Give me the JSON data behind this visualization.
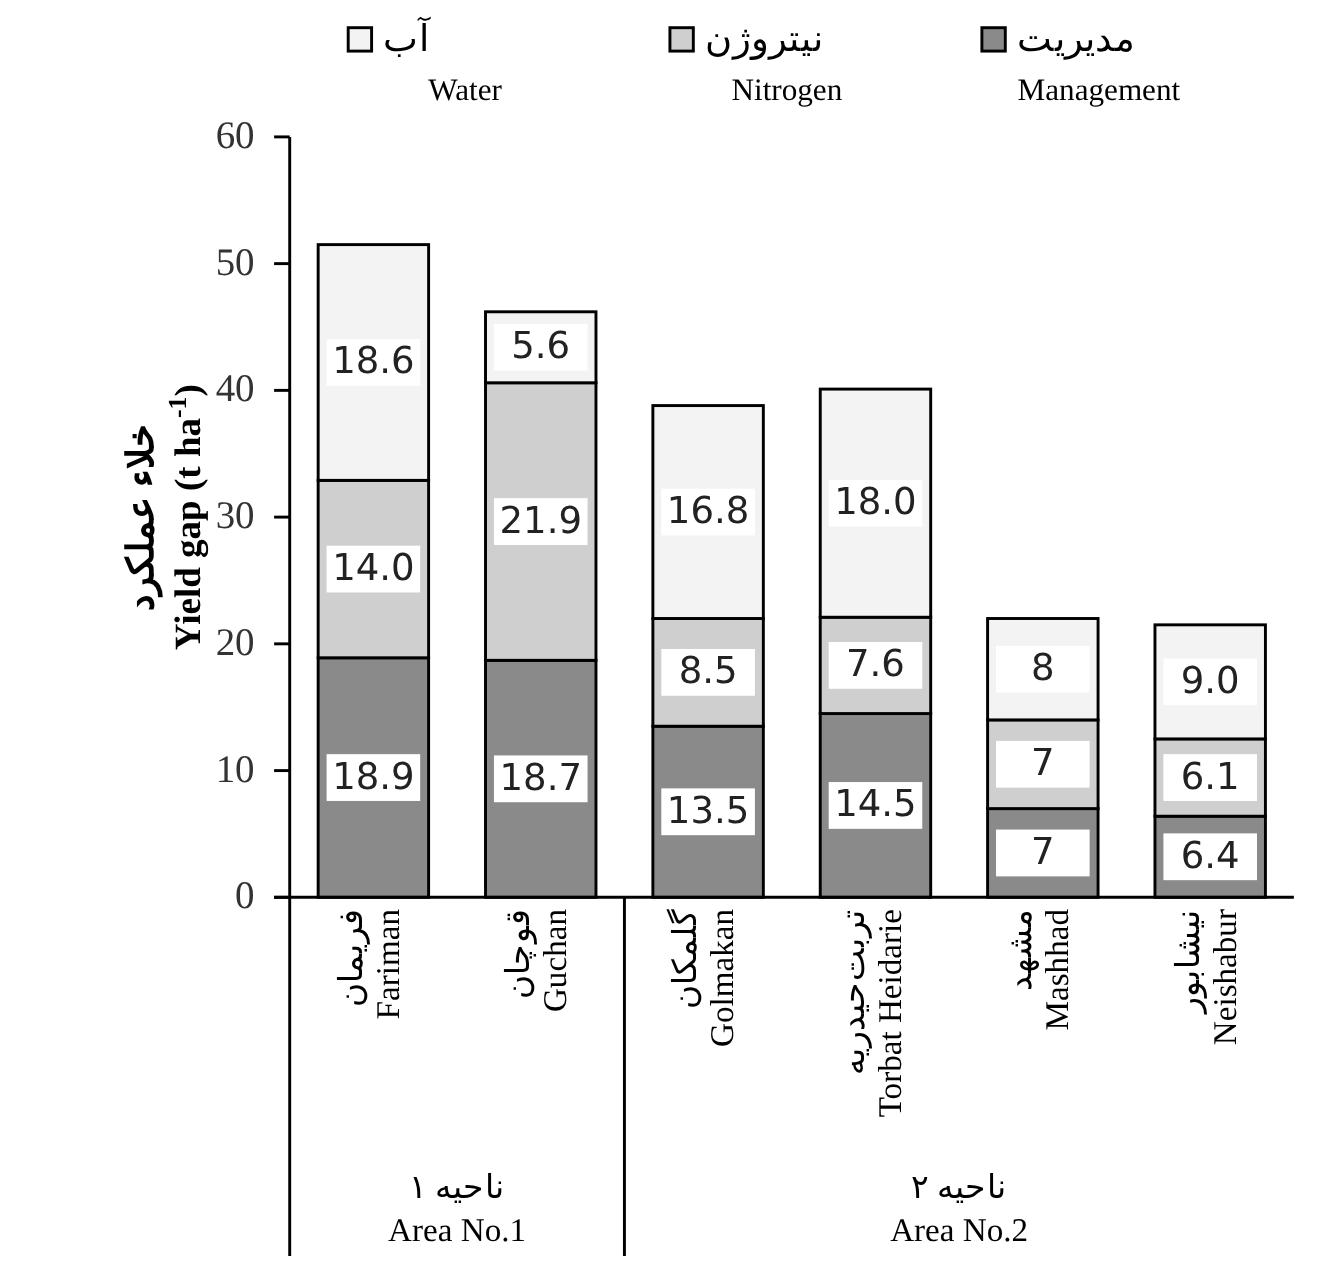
{
  "chart_data": {
    "type": "bar",
    "stacked": true,
    "ylabel": "خلاء عملکرد\nYield gap (t ha$^{-1}$)",
    "categories": [
      "فریمان\nFariman",
      "قوچان\nGuchan",
      "گلمکان\nGolmakan",
      "تربت‌حیدریه\nTorbat Heidarie",
      "مشهد\nMashhad",
      "نیشابور\nNeishabur"
    ],
    "series": [
      {
        "name": "مدیریت\nManagement",
        "color": "#8a8a8a",
        "values": [
          18.9,
          18.7,
          13.5,
          14.5,
          7,
          6.4
        ],
        "value_labels": [
          "18.9",
          "18.7",
          "13.5",
          "14.5",
          "7",
          "6.4"
        ]
      },
      {
        "name": "نیتروژن\nNitrogen",
        "color": "#cfcfcf",
        "values": [
          14.0,
          21.9,
          8.5,
          7.6,
          7,
          6.1
        ],
        "value_labels": [
          "14.0",
          "21.9",
          "8.5",
          "7.6",
          "7",
          "6.1"
        ]
      },
      {
        "name": "آب\nWater",
        "color": "#f3f3f3",
        "values": [
          18.6,
          5.6,
          16.8,
          18.0,
          8,
          9.0
        ],
        "value_labels": [
          "18.6",
          "5.6",
          "16.8",
          "18.0",
          "8",
          "9.0"
        ]
      }
    ],
    "ylim": [
      0,
      60
    ],
    "yticks": [
      0,
      10,
      20,
      30,
      40,
      50,
      60
    ],
    "legend": "top",
    "annotations": [
      "ناحیه ۱\nArea No.1",
      "ناحیه ۲\nArea No.2"
    ]
  }
}
